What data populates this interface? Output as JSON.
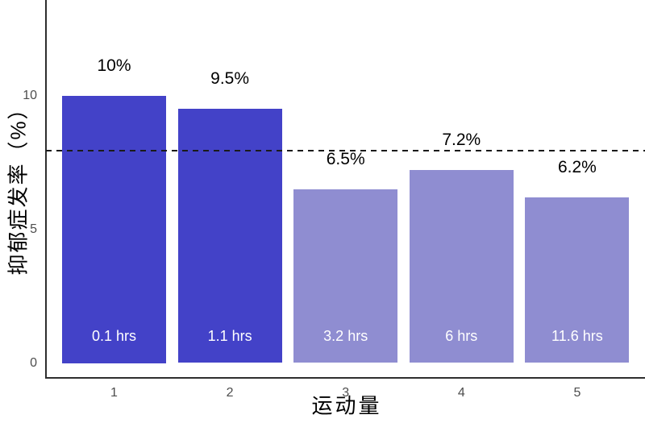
{
  "chart_data": {
    "type": "bar",
    "title": "",
    "xlabel": "运动量",
    "ylabel": "抑郁症发率（%）",
    "categories": [
      "1",
      "2",
      "3",
      "4",
      "5"
    ],
    "values": [
      10,
      9.5,
      6.5,
      7.2,
      6.2
    ],
    "value_labels": [
      "10%",
      "9.5%",
      "6.5%",
      "7.2%",
      "6.2%"
    ],
    "bar_annotations": [
      "0.1 hrs",
      "1.1 hrs",
      "3.2 hrs",
      "6 hrs",
      "11.6 hrs"
    ],
    "bar_colors": [
      "#4342c8",
      "#4342c8",
      "#8f8dd1",
      "#8f8dd1",
      "#8f8dd1"
    ],
    "y_tick_labels": [
      "0",
      "5",
      "10"
    ],
    "y_tick_values": [
      0,
      5,
      10
    ],
    "ylim": [
      0,
      13.6
    ],
    "reference_line": {
      "value": 8,
      "style": "dashed",
      "color": "#1a1a1a"
    },
    "grid": false,
    "legend": "none"
  },
  "colors": {
    "bar_dark": "#4342c8",
    "bar_light": "#8f8dd1",
    "axis": "#2e2e2e",
    "tick_label": "#4d4d4d",
    "value_label": "#000000",
    "annotation_text": "#ffffff",
    "background": "#ffffff"
  }
}
